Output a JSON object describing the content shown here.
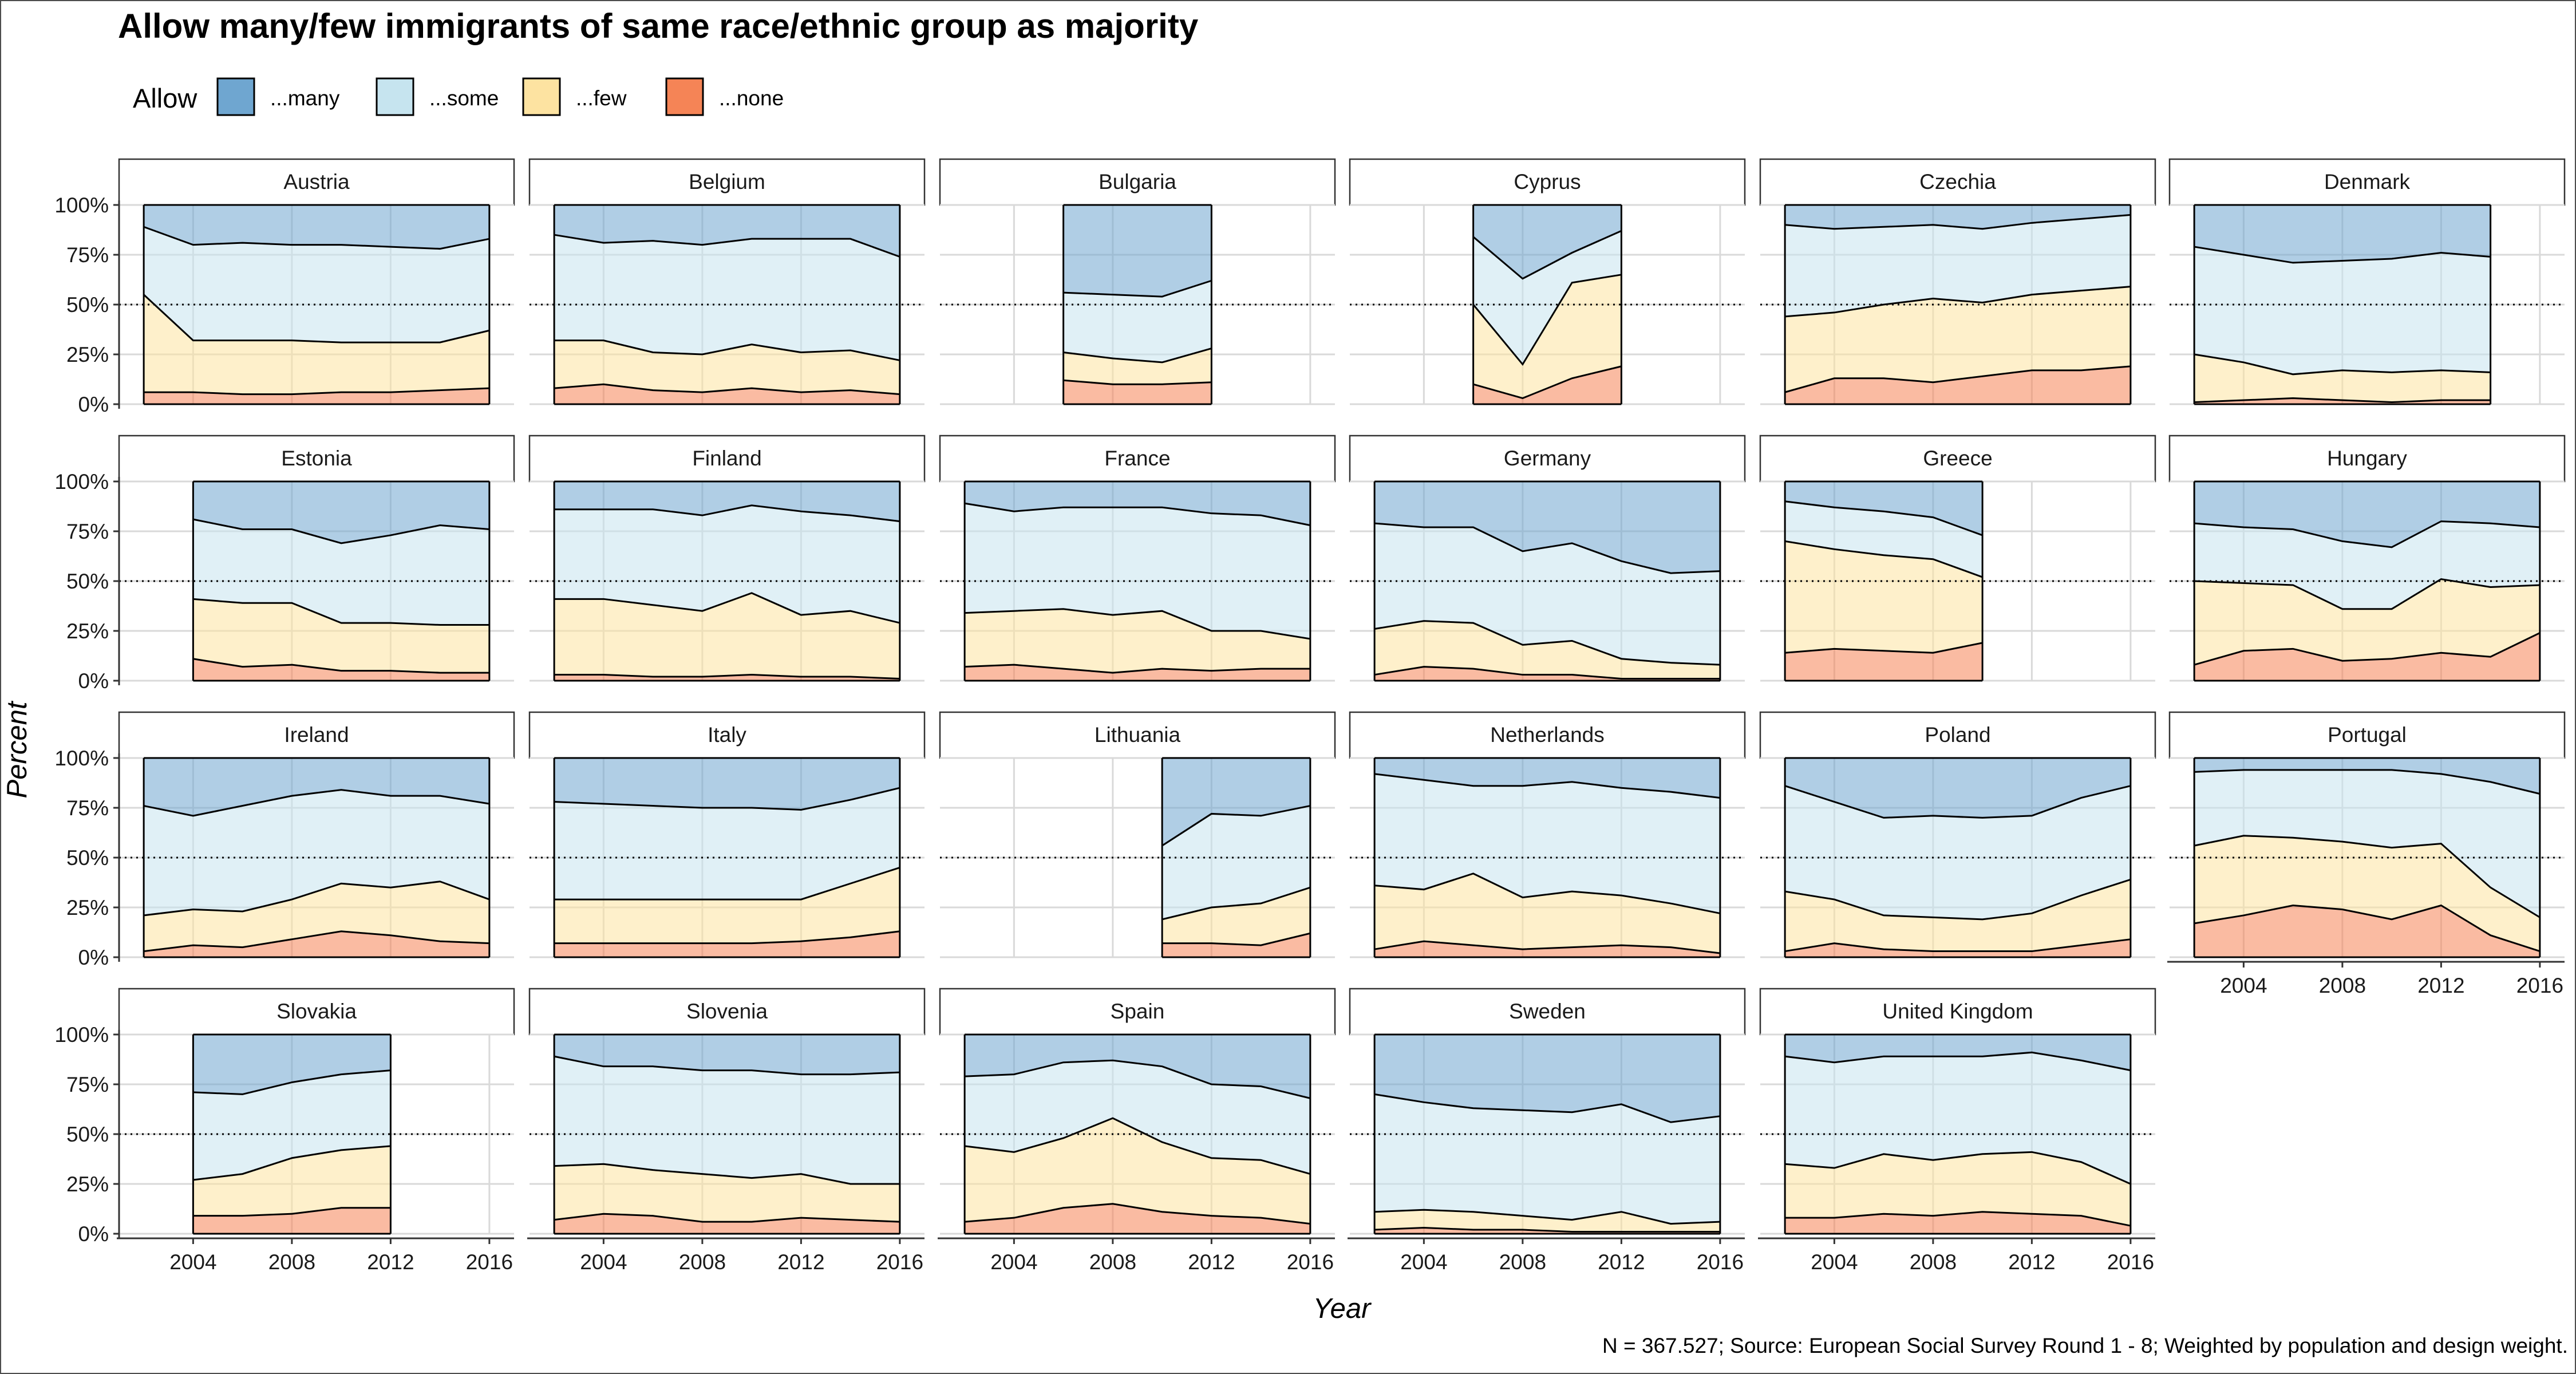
{
  "title": "Allow many/few immigrants of same race/ethnic group as majority",
  "legend": {
    "title": "Allow",
    "items": [
      {
        "label": "...many",
        "color": "#6fa6d0"
      },
      {
        "label": "...some",
        "color": "#c6e4ef"
      },
      {
        "label": "...few",
        "color": "#fde3a1"
      },
      {
        "label": "...none",
        "color": "#f58456"
      }
    ]
  },
  "caption": "N = 367.527; Source: European Social Survey Round 1 - 8; Weighted by population and design weight.",
  "colors": {
    "many": "#6fa6d0",
    "some": "#c6e4ef",
    "few": "#fde3a1",
    "none": "#f58456"
  },
  "chart_data": {
    "type": "area",
    "stacked": true,
    "normalized": true,
    "xlabel": "Year",
    "ylabel": "Percent",
    "xlim": [
      2001,
      2017
    ],
    "ylim": [
      0,
      1
    ],
    "x_ticks": [
      2004,
      2008,
      2012,
      2016
    ],
    "y_ticks": [
      0,
      0.25,
      0.5,
      0.75,
      1
    ],
    "y_tick_labels": [
      "0%",
      "25%",
      "50%",
      "75%",
      "100%"
    ],
    "reference_line": 0.5,
    "boundaries_note": "per panel, values are cumulative shares from the bottom: none, none+few, none+few+some",
    "panels": [
      {
        "name": "Austria",
        "x": [
          2002,
          2004,
          2006,
          2008,
          2010,
          2012,
          2014,
          2016
        ],
        "none": [
          0.06,
          0.06,
          0.05,
          0.05,
          0.06,
          0.06,
          0.07,
          0.08
        ],
        "none_few": [
          0.55,
          0.32,
          0.32,
          0.32,
          0.31,
          0.31,
          0.31,
          0.37
        ],
        "none_few_some": [
          0.89,
          0.8,
          0.81,
          0.8,
          0.8,
          0.79,
          0.78,
          0.83
        ]
      },
      {
        "name": "Belgium",
        "x": [
          2002,
          2004,
          2006,
          2008,
          2010,
          2012,
          2014,
          2016
        ],
        "none": [
          0.08,
          0.1,
          0.07,
          0.06,
          0.08,
          0.06,
          0.07,
          0.05
        ],
        "none_few": [
          0.32,
          0.32,
          0.26,
          0.25,
          0.3,
          0.26,
          0.27,
          0.22
        ],
        "none_few_some": [
          0.85,
          0.81,
          0.82,
          0.8,
          0.83,
          0.83,
          0.83,
          0.74
        ]
      },
      {
        "name": "Bulgaria",
        "x": [
          2006,
          2008,
          2010,
          2012
        ],
        "none": [
          0.12,
          0.1,
          0.1,
          0.11
        ],
        "none_few": [
          0.26,
          0.23,
          0.21,
          0.28
        ],
        "none_few_some": [
          0.56,
          0.55,
          0.54,
          0.62
        ]
      },
      {
        "name": "Cyprus",
        "x": [
          2006,
          2008,
          2010,
          2012
        ],
        "none": [
          0.1,
          0.03,
          0.13,
          0.19
        ],
        "none_few": [
          0.5,
          0.2,
          0.61,
          0.65
        ],
        "none_few_some": [
          0.84,
          0.63,
          0.76,
          0.87
        ]
      },
      {
        "name": "Czechia",
        "x": [
          2002,
          2004,
          2006,
          2008,
          2010,
          2012,
          2014,
          2016
        ],
        "none": [
          0.06,
          0.13,
          0.13,
          0.11,
          0.14,
          0.17,
          0.17,
          0.19
        ],
        "none_few": [
          0.44,
          0.46,
          0.5,
          0.53,
          0.51,
          0.55,
          0.57,
          0.59
        ],
        "none_few_some": [
          0.9,
          0.88,
          0.89,
          0.9,
          0.88,
          0.91,
          0.93,
          0.95
        ]
      },
      {
        "name": "Denmark",
        "x": [
          2002,
          2004,
          2006,
          2008,
          2010,
          2012,
          2014
        ],
        "none": [
          0.01,
          0.02,
          0.03,
          0.02,
          0.01,
          0.02,
          0.02
        ],
        "none_few": [
          0.25,
          0.21,
          0.15,
          0.17,
          0.16,
          0.17,
          0.16
        ],
        "none_few_some": [
          0.79,
          0.75,
          0.71,
          0.72,
          0.73,
          0.76,
          0.74
        ]
      },
      {
        "name": "Estonia",
        "x": [
          2004,
          2006,
          2008,
          2010,
          2012,
          2014,
          2016
        ],
        "none": [
          0.11,
          0.07,
          0.08,
          0.05,
          0.05,
          0.04,
          0.04
        ],
        "none_few": [
          0.41,
          0.39,
          0.39,
          0.29,
          0.29,
          0.28,
          0.28
        ],
        "none_few_some": [
          0.81,
          0.76,
          0.76,
          0.69,
          0.73,
          0.78,
          0.76
        ]
      },
      {
        "name": "Finland",
        "x": [
          2002,
          2004,
          2006,
          2008,
          2010,
          2012,
          2014,
          2016
        ],
        "none": [
          0.03,
          0.03,
          0.02,
          0.02,
          0.03,
          0.02,
          0.02,
          0.01
        ],
        "none_few": [
          0.41,
          0.41,
          0.38,
          0.35,
          0.44,
          0.33,
          0.35,
          0.29
        ],
        "none_few_some": [
          0.86,
          0.86,
          0.86,
          0.83,
          0.88,
          0.85,
          0.83,
          0.8
        ]
      },
      {
        "name": "France",
        "x": [
          2002,
          2004,
          2006,
          2008,
          2010,
          2012,
          2014,
          2016
        ],
        "none": [
          0.07,
          0.08,
          0.06,
          0.04,
          0.06,
          0.05,
          0.06,
          0.06
        ],
        "none_few": [
          0.34,
          0.35,
          0.36,
          0.33,
          0.35,
          0.25,
          0.25,
          0.21
        ],
        "none_few_some": [
          0.89,
          0.85,
          0.87,
          0.87,
          0.87,
          0.84,
          0.83,
          0.78
        ]
      },
      {
        "name": "Germany",
        "x": [
          2002,
          2004,
          2006,
          2008,
          2010,
          2012,
          2014,
          2016
        ],
        "none": [
          0.03,
          0.07,
          0.06,
          0.03,
          0.03,
          0.01,
          0.01,
          0.01
        ],
        "none_few": [
          0.26,
          0.3,
          0.29,
          0.18,
          0.2,
          0.11,
          0.09,
          0.08
        ],
        "none_few_some": [
          0.79,
          0.77,
          0.77,
          0.65,
          0.69,
          0.6,
          0.54,
          0.55
        ]
      },
      {
        "name": "Greece",
        "x": [
          2002,
          2004,
          2006,
          2008,
          2010
        ],
        "none": [
          0.14,
          0.16,
          0.15,
          0.14,
          0.19
        ],
        "none_few": [
          0.7,
          0.66,
          0.63,
          0.61,
          0.52
        ],
        "none_few_some": [
          0.9,
          0.87,
          0.85,
          0.82,
          0.73
        ]
      },
      {
        "name": "Hungary",
        "x": [
          2002,
          2004,
          2006,
          2008,
          2010,
          2012,
          2014,
          2016
        ],
        "none": [
          0.08,
          0.15,
          0.16,
          0.1,
          0.11,
          0.14,
          0.12,
          0.24
        ],
        "none_few": [
          0.5,
          0.49,
          0.48,
          0.36,
          0.36,
          0.51,
          0.47,
          0.48
        ],
        "none_few_some": [
          0.79,
          0.77,
          0.76,
          0.7,
          0.67,
          0.8,
          0.79,
          0.77
        ]
      },
      {
        "name": "Ireland",
        "x": [
          2002,
          2004,
          2006,
          2008,
          2010,
          2012,
          2014,
          2016
        ],
        "none": [
          0.03,
          0.06,
          0.05,
          0.09,
          0.13,
          0.11,
          0.08,
          0.07
        ],
        "none_few": [
          0.21,
          0.24,
          0.23,
          0.29,
          0.37,
          0.35,
          0.38,
          0.29
        ],
        "none_few_some": [
          0.76,
          0.71,
          0.76,
          0.81,
          0.84,
          0.81,
          0.81,
          0.77
        ]
      },
      {
        "name": "Italy",
        "x": [
          2002,
          2004,
          2006,
          2008,
          2010,
          2012,
          2014,
          2016
        ],
        "none": [
          0.07,
          0.07,
          0.07,
          0.07,
          0.07,
          0.08,
          0.1,
          0.13
        ],
        "none_few": [
          0.29,
          0.29,
          0.29,
          0.29,
          0.29,
          0.29,
          0.37,
          0.45
        ],
        "none_few_some": [
          0.78,
          0.77,
          0.76,
          0.75,
          0.75,
          0.74,
          0.79,
          0.85
        ]
      },
      {
        "name": "Lithuania",
        "x": [
          2010,
          2012,
          2014,
          2016
        ],
        "none": [
          0.07,
          0.07,
          0.06,
          0.12
        ],
        "none_few": [
          0.19,
          0.25,
          0.27,
          0.35
        ],
        "none_few_some": [
          0.56,
          0.72,
          0.71,
          0.76
        ]
      },
      {
        "name": "Netherlands",
        "x": [
          2002,
          2004,
          2006,
          2008,
          2010,
          2012,
          2014,
          2016
        ],
        "none": [
          0.04,
          0.08,
          0.06,
          0.04,
          0.05,
          0.06,
          0.05,
          0.02
        ],
        "none_few": [
          0.36,
          0.34,
          0.42,
          0.3,
          0.33,
          0.31,
          0.27,
          0.22
        ],
        "none_few_some": [
          0.92,
          0.89,
          0.86,
          0.86,
          0.88,
          0.85,
          0.83,
          0.8
        ]
      },
      {
        "name": "Poland",
        "x": [
          2002,
          2004,
          2006,
          2008,
          2010,
          2012,
          2014,
          2016
        ],
        "none": [
          0.03,
          0.07,
          0.04,
          0.03,
          0.03,
          0.03,
          0.06,
          0.09
        ],
        "none_few": [
          0.33,
          0.29,
          0.21,
          0.2,
          0.19,
          0.22,
          0.31,
          0.39
        ],
        "none_few_some": [
          0.86,
          0.78,
          0.7,
          0.71,
          0.7,
          0.71,
          0.8,
          0.86
        ]
      },
      {
        "name": "Portugal",
        "x": [
          2002,
          2004,
          2006,
          2008,
          2010,
          2012,
          2014,
          2016
        ],
        "none": [
          0.17,
          0.21,
          0.26,
          0.24,
          0.19,
          0.26,
          0.11,
          0.03
        ],
        "none_few": [
          0.56,
          0.61,
          0.6,
          0.58,
          0.55,
          0.57,
          0.35,
          0.2
        ],
        "none_few_some": [
          0.93,
          0.94,
          0.94,
          0.94,
          0.94,
          0.92,
          0.88,
          0.82
        ]
      },
      {
        "name": "Slovakia",
        "x": [
          2004,
          2006,
          2008,
          2010,
          2012
        ],
        "none": [
          0.09,
          0.09,
          0.1,
          0.13,
          0.13
        ],
        "none_few": [
          0.27,
          0.3,
          0.38,
          0.42,
          0.44
        ],
        "none_few_some": [
          0.71,
          0.7,
          0.76,
          0.8,
          0.82
        ]
      },
      {
        "name": "Slovenia",
        "x": [
          2002,
          2004,
          2006,
          2008,
          2010,
          2012,
          2014,
          2016
        ],
        "none": [
          0.07,
          0.1,
          0.09,
          0.06,
          0.06,
          0.08,
          0.07,
          0.06
        ],
        "none_few": [
          0.34,
          0.35,
          0.32,
          0.3,
          0.28,
          0.3,
          0.25,
          0.25
        ],
        "none_few_some": [
          0.89,
          0.84,
          0.84,
          0.82,
          0.82,
          0.8,
          0.8,
          0.81
        ]
      },
      {
        "name": "Spain",
        "x": [
          2002,
          2004,
          2006,
          2008,
          2010,
          2012,
          2014,
          2016
        ],
        "none": [
          0.06,
          0.08,
          0.13,
          0.15,
          0.11,
          0.09,
          0.08,
          0.05
        ],
        "none_few": [
          0.44,
          0.41,
          0.48,
          0.58,
          0.46,
          0.38,
          0.37,
          0.3
        ],
        "none_few_some": [
          0.79,
          0.8,
          0.86,
          0.87,
          0.84,
          0.75,
          0.74,
          0.68
        ]
      },
      {
        "name": "Sweden",
        "x": [
          2002,
          2004,
          2006,
          2008,
          2010,
          2012,
          2014,
          2016
        ],
        "none": [
          0.02,
          0.03,
          0.02,
          0.02,
          0.01,
          0.01,
          0.01,
          0.01
        ],
        "none_few": [
          0.11,
          0.12,
          0.11,
          0.09,
          0.07,
          0.11,
          0.05,
          0.06
        ],
        "none_few_some": [
          0.7,
          0.66,
          0.63,
          0.62,
          0.61,
          0.65,
          0.56,
          0.59
        ]
      },
      {
        "name": "United Kingdom",
        "x": [
          2002,
          2004,
          2006,
          2008,
          2010,
          2012,
          2014,
          2016
        ],
        "none": [
          0.08,
          0.08,
          0.1,
          0.09,
          0.11,
          0.1,
          0.09,
          0.04
        ],
        "none_few": [
          0.35,
          0.33,
          0.4,
          0.37,
          0.4,
          0.41,
          0.36,
          0.25
        ],
        "none_few_some": [
          0.89,
          0.86,
          0.89,
          0.89,
          0.89,
          0.91,
          0.87,
          0.82
        ]
      }
    ]
  }
}
